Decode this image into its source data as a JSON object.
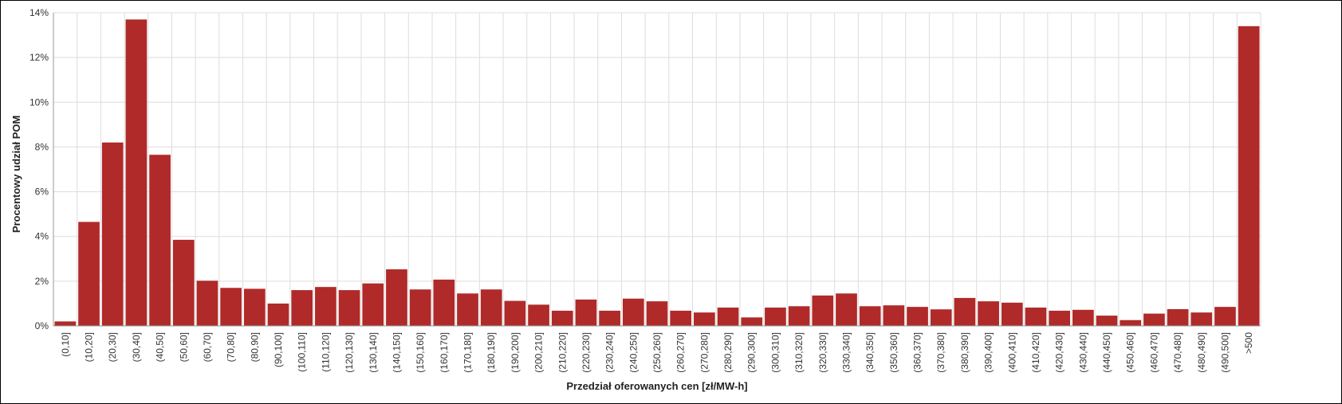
{
  "chart_data": {
    "type": "bar",
    "title": "",
    "xlabel": "Przedział oferowanych cen [zł/MW-h]",
    "ylabel": "Procentowy udział POM",
    "ylim": [
      0,
      14
    ],
    "yticks": [
      "0%",
      "2%",
      "4%",
      "6%",
      "8%",
      "10%",
      "12%",
      "14%"
    ],
    "ytick_values": [
      0,
      2,
      4,
      6,
      8,
      10,
      12,
      14
    ],
    "grid": true,
    "legend": "none",
    "bar_color": "#b02a2a",
    "categories": [
      "(0,10]",
      "(10,20]",
      "(20,30]",
      "(30,40]",
      "(40,50]",
      "(50,60]",
      "(60,70]",
      "(70,80]",
      "(80,90]",
      "(90,100]",
      "(100,110]",
      "(110,120]",
      "(120,130]",
      "(130,140]",
      "(140,150]",
      "(150,160]",
      "(160,170]",
      "(170,180]",
      "(180,190]",
      "(190,200]",
      "(200,210]",
      "(210,220]",
      "(220,230]",
      "(230,240]",
      "(240,250]",
      "(250,260]",
      "(260,270]",
      "(270,280]",
      "(280,290]",
      "(290,300]",
      "(300,310]",
      "(310,320]",
      "(320,330]",
      "(330,340]",
      "(340,350]",
      "(350,360]",
      "(360,370]",
      "(370,380]",
      "(380,390]",
      "(390,400]",
      "(400,410]",
      "(410,420]",
      "(420,430]",
      "(430,440]",
      "(440,450]",
      "(450,460]",
      "(460,470]",
      "(470,480]",
      "(480,490]",
      "(490,500]",
      ">500"
    ],
    "values": [
      0.2,
      4.65,
      8.2,
      13.7,
      7.65,
      3.85,
      2.02,
      1.7,
      1.66,
      1.0,
      1.6,
      1.74,
      1.6,
      1.9,
      2.53,
      1.63,
      2.07,
      1.45,
      1.63,
      1.12,
      0.95,
      0.68,
      1.18,
      0.68,
      1.22,
      1.1,
      0.68,
      0.6,
      0.82,
      0.38,
      0.82,
      0.88,
      1.36,
      1.45,
      0.88,
      0.92,
      0.85,
      0.74,
      1.25,
      1.1,
      1.04,
      0.82,
      0.68,
      0.72,
      0.46,
      0.26,
      0.55,
      0.75,
      0.6,
      0.85,
      13.4
    ]
  }
}
